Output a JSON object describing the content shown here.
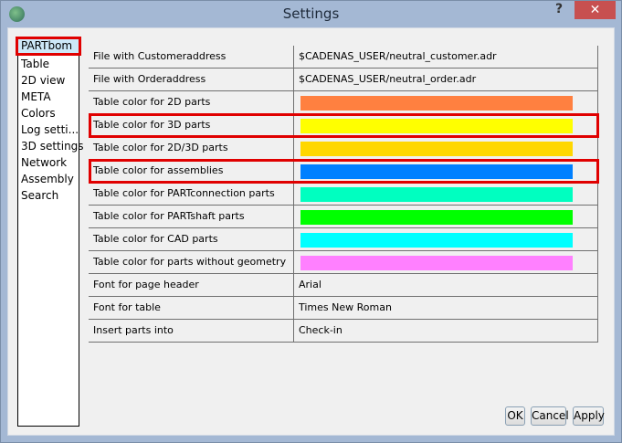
{
  "window": {
    "title": "Settings",
    "help": "?",
    "close": "✕"
  },
  "nav": {
    "items": [
      "PARTbom",
      "Table",
      "2D view",
      "META",
      "Colors",
      "Log setti...",
      "3D settings",
      "Network",
      "Assembly",
      "Search"
    ],
    "selected": "PARTbom"
  },
  "rows": [
    {
      "label": "File with Customeraddress",
      "value": "$CADENAS_USER/neutral_customer.adr"
    },
    {
      "label": "File with Orderaddress",
      "value": "$CADENAS_USER/neutral_order.adr"
    },
    {
      "label": "Table color for 2D parts",
      "color": "#ff8040"
    },
    {
      "label": "Table color for 3D parts",
      "color": "#ffff00"
    },
    {
      "label": "Table color for 2D/3D parts",
      "color": "#ffd700"
    },
    {
      "label": "Table color for assemblies",
      "color": "#0080ff"
    },
    {
      "label": "Table color for PARTconnection parts",
      "color": "#00ffc0"
    },
    {
      "label": "Table color for PARTshaft parts",
      "color": "#00ff00"
    },
    {
      "label": "Table color for CAD parts",
      "color": "#00ffff"
    },
    {
      "label": "Table color for parts without geometry",
      "color": "#ff80ff"
    },
    {
      "label": "Font for page header",
      "value": "Arial"
    },
    {
      "label": "Font for table",
      "value": "Times New Roman"
    },
    {
      "label": "Insert parts into",
      "value": "Check-in"
    }
  ],
  "buttons": {
    "ok": "OK",
    "cancel": "Cancel",
    "apply": "Apply"
  },
  "highlight_color": "#e00000"
}
